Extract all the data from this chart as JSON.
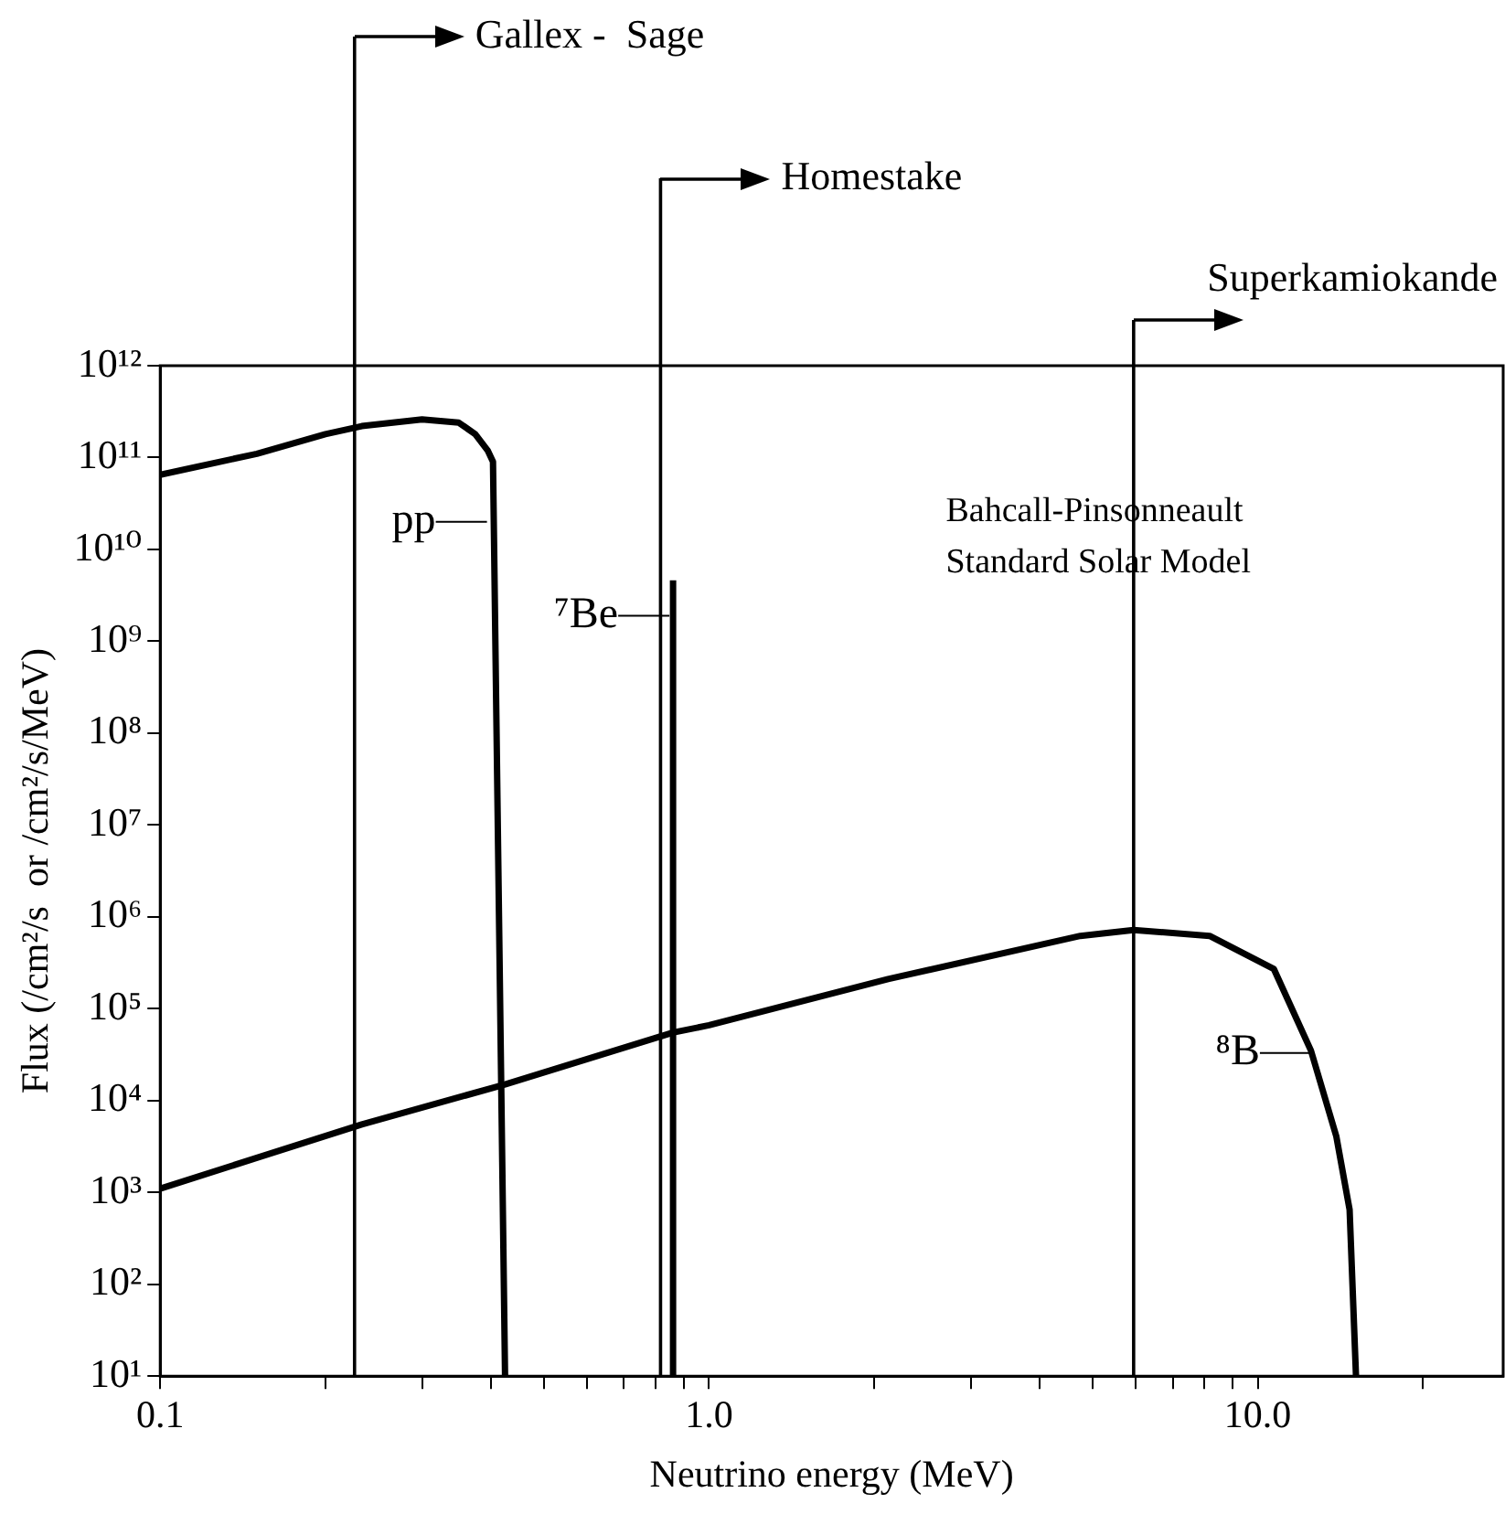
{
  "chart_data": {
    "type": "line",
    "xlabel": "Neutrino energy (MeV)",
    "ylabel": "Flux (/cm²/s  or /cm²/s/MeV)",
    "log": "xy",
    "grid": false,
    "legend": false,
    "marker": "none",
    "line_style": "solid",
    "xlim": [
      0.1,
      28
    ],
    "ylim": [
      10,
      1000000000000.0
    ],
    "xticks": [
      {
        "value": 0.1,
        "label": "0.1"
      },
      {
        "value": 0.2,
        "label": null
      },
      {
        "value": 0.3,
        "label": null
      },
      {
        "value": 0.4,
        "label": null
      },
      {
        "value": 0.5,
        "label": null
      },
      {
        "value": 0.6,
        "label": null
      },
      {
        "value": 0.7,
        "label": null
      },
      {
        "value": 0.8,
        "label": null
      },
      {
        "value": 0.9,
        "label": null
      },
      {
        "value": 1,
        "label": "1.0"
      },
      {
        "value": 2,
        "label": null
      },
      {
        "value": 3,
        "label": null
      },
      {
        "value": 4,
        "label": null
      },
      {
        "value": 5,
        "label": null
      },
      {
        "value": 6,
        "label": null
      },
      {
        "value": 7,
        "label": null
      },
      {
        "value": 8,
        "label": null
      },
      {
        "value": 9,
        "label": null
      },
      {
        "value": 10,
        "label": "10.0"
      },
      {
        "value": 20,
        "label": null
      }
    ],
    "yticks": [
      {
        "value": 10,
        "label": "10¹"
      },
      {
        "value": 100,
        "label": "10²"
      },
      {
        "value": 1000,
        "label": "10³"
      },
      {
        "value": 10000,
        "label": "10⁴"
      },
      {
        "value": 100000,
        "label": "10⁵"
      },
      {
        "value": 1000000,
        "label": "10⁶"
      },
      {
        "value": 10000000,
        "label": "10⁷"
      },
      {
        "value": 100000000,
        "label": "10⁸"
      },
      {
        "value": 1000000000,
        "label": "10⁹"
      },
      {
        "value": 10000000000,
        "label": "10¹⁰"
      },
      {
        "value": 100000000000,
        "label": "10¹¹"
      },
      {
        "value": 1000000000000,
        "label": "10¹²"
      }
    ],
    "series": [
      {
        "color": "#000000",
        "x": [
          0.1,
          0.15,
          0.2,
          0.233,
          0.3,
          0.35,
          0.375,
          0.395,
          0.404,
          0.425
        ],
        "values": [
          65000000000.0,
          110000000000.0,
          180000000000.0,
          220000000000.0,
          260000000000.0,
          240000000000.0,
          180000000000.0,
          120000000000.0,
          90000000000.0,
          10
        ]
      },
      {
        "color": "#000000",
        "x": [
          0.86,
          0.86
        ],
        "values": [
          10,
          4600000000.0
        ]
      },
      {
        "color": "#000000",
        "x": [
          0.1,
          0.233,
          0.425,
          0.86,
          1.0,
          2.12,
          4.75,
          5.94,
          8.17,
          10.7,
          12.5,
          13.9,
          14.7,
          15.1
        ],
        "values": [
          1100,
          5500,
          15000,
          55000,
          66000,
          210000,
          620000,
          720000,
          620000,
          270000,
          35000,
          4100,
          650,
          10
        ]
      }
    ],
    "ref_lines": [
      {
        "axis": "x",
        "value": 0.226,
        "label": "Gallex -  Sage",
        "color": "#000000"
      },
      {
        "axis": "x",
        "value": 0.816,
        "label": "Homestake",
        "color": "#000000"
      },
      {
        "axis": "x",
        "value": 5.94,
        "label": "Superkamiokande",
        "color": "#000000"
      }
    ],
    "annotations": [
      {
        "text": "pp",
        "x": 0.4,
        "y": 20000000000.0
      },
      {
        "text": "⁷Be",
        "x": 0.86,
        "y": 1900000000.0
      },
      {
        "text": "⁸B",
        "x": 12.7,
        "y": 33000
      },
      "Bahcall-Pinsonneault",
      "Standard Solar Model"
    ]
  }
}
